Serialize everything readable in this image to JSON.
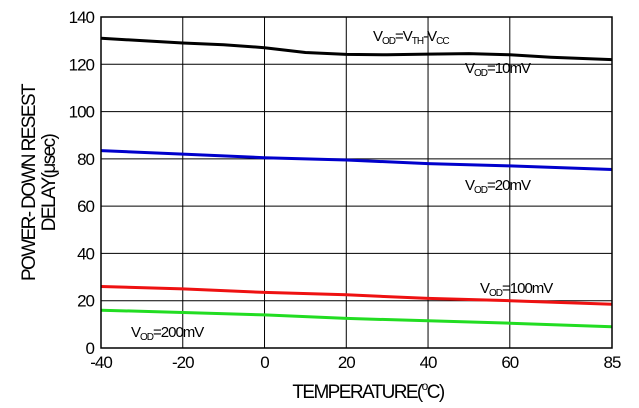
{
  "chart_data": {
    "type": "line",
    "title": "",
    "xlabel": "TEMPERATURE(°C)",
    "xlabel_main": "TEMPERATURE(",
    "xlabel_degree": "o",
    "xlabel_unit": "C)",
    "ylabel_line1": "POWER- DOWN RESEST",
    "ylabel_line2": "DELAY(μsec)",
    "xlim": [
      -40,
      85
    ],
    "ylim": [
      0,
      140
    ],
    "x_ticks": [
      -40,
      -20,
      0,
      20,
      40,
      60,
      85
    ],
    "y_ticks": [
      0,
      20,
      40,
      60,
      80,
      100,
      120,
      140
    ],
    "grid": "horizontal",
    "legend": "none",
    "series": [
      {
        "name": "VOD=10mV",
        "label_main": "V",
        "label_sub": "OD",
        "label_tail": "=10mV",
        "color": "#000000",
        "points": [
          [
            -40,
            131
          ],
          [
            -30,
            130
          ],
          [
            -20,
            129
          ],
          [
            -10,
            128.3
          ],
          [
            0,
            127
          ],
          [
            10,
            125
          ],
          [
            20,
            124.2
          ],
          [
            30,
            124
          ],
          [
            40,
            124.3
          ],
          [
            50,
            124.5
          ],
          [
            60,
            124
          ],
          [
            70,
            123
          ],
          [
            85,
            122
          ]
        ]
      },
      {
        "name": "VOD=20mV",
        "label_main": "V",
        "label_sub": "OD",
        "label_tail": "=20mV",
        "color": "#0000cc",
        "points": [
          [
            -40,
            83.5
          ],
          [
            -20,
            82
          ],
          [
            0,
            80.5
          ],
          [
            20,
            79.5
          ],
          [
            40,
            78
          ],
          [
            60,
            77
          ],
          [
            85,
            75.5
          ]
        ]
      },
      {
        "name": "VOD=100mV",
        "label_main": "V",
        "label_sub": "OD",
        "label_tail": "=100mV",
        "color": "#ee1111",
        "points": [
          [
            -40,
            26
          ],
          [
            -20,
            25
          ],
          [
            0,
            23.5
          ],
          [
            20,
            22.5
          ],
          [
            40,
            21
          ],
          [
            60,
            20
          ],
          [
            85,
            18.5
          ]
        ]
      },
      {
        "name": "VOD=200mV",
        "label_main": "V",
        "label_sub": "OD",
        "label_tail": "=200mV",
        "color": "#22dd22",
        "points": [
          [
            -40,
            16
          ],
          [
            -20,
            15
          ],
          [
            0,
            14
          ],
          [
            20,
            12.5
          ],
          [
            40,
            11.5
          ],
          [
            60,
            10.5
          ],
          [
            85,
            9
          ]
        ]
      }
    ],
    "annotation": {
      "v1": "V",
      "s1": "OD",
      "mid": "=V",
      "s2": "TH",
      "mid2": "-V",
      "s3": "CC"
    }
  }
}
